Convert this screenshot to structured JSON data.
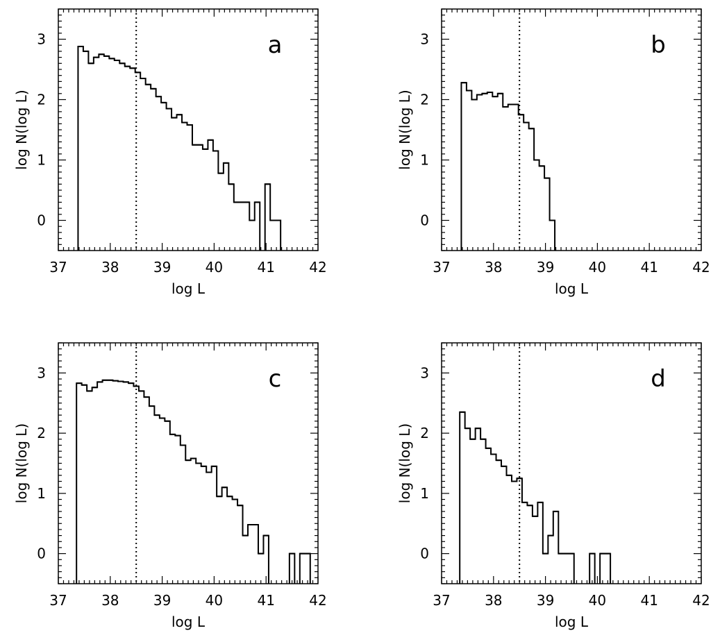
{
  "figure": {
    "panels": [
      "a",
      "b",
      "c",
      "d"
    ]
  },
  "chart_data": [
    {
      "panel_label": "a",
      "type": "step",
      "xlabel": "log L",
      "ylabel": "log N(log L)",
      "xlim": [
        37,
        42
      ],
      "ylim": [
        -0.5,
        3.5
      ],
      "xticks": [
        "37",
        "38",
        "39",
        "40",
        "41",
        "42"
      ],
      "yticks": [
        "0",
        "1",
        "2",
        "3"
      ],
      "threshold_x": 38.5,
      "bin_width": 0.1,
      "bins": [
        {
          "x": 37.38,
          "y": 2.88
        },
        {
          "x": 37.48,
          "y": 2.8
        },
        {
          "x": 37.58,
          "y": 2.6
        },
        {
          "x": 37.68,
          "y": 2.7
        },
        {
          "x": 37.78,
          "y": 2.75
        },
        {
          "x": 37.88,
          "y": 2.72
        },
        {
          "x": 37.98,
          "y": 2.68
        },
        {
          "x": 38.08,
          "y": 2.65
        },
        {
          "x": 38.18,
          "y": 2.6
        },
        {
          "x": 38.28,
          "y": 2.55
        },
        {
          "x": 38.38,
          "y": 2.52
        },
        {
          "x": 38.48,
          "y": 2.45
        },
        {
          "x": 38.58,
          "y": 2.35
        },
        {
          "x": 38.68,
          "y": 2.25
        },
        {
          "x": 38.78,
          "y": 2.18
        },
        {
          "x": 38.88,
          "y": 2.05
        },
        {
          "x": 38.98,
          "y": 1.95
        },
        {
          "x": 39.08,
          "y": 1.85
        },
        {
          "x": 39.18,
          "y": 1.7
        },
        {
          "x": 39.28,
          "y": 1.75
        },
        {
          "x": 39.38,
          "y": 1.62
        },
        {
          "x": 39.48,
          "y": 1.58
        },
        {
          "x": 39.58,
          "y": 1.25
        },
        {
          "x": 39.68,
          "y": 1.25
        },
        {
          "x": 39.78,
          "y": 1.18
        },
        {
          "x": 39.88,
          "y": 1.33
        },
        {
          "x": 39.98,
          "y": 1.15
        },
        {
          "x": 40.08,
          "y": 0.78
        },
        {
          "x": 40.18,
          "y": 0.95
        },
        {
          "x": 40.28,
          "y": 0.6
        },
        {
          "x": 40.38,
          "y": 0.3
        },
        {
          "x": 40.48,
          "y": 0.3
        },
        {
          "x": 40.58,
          "y": 0.3
        },
        {
          "x": 40.68,
          "y": 0.0
        },
        {
          "x": 40.78,
          "y": 0.3
        },
        {
          "x": 40.98,
          "y": 0.6
        },
        {
          "x": 41.08,
          "y": 0.0
        },
        {
          "x": 41.18,
          "y": 0.0
        }
      ]
    },
    {
      "panel_label": "b",
      "type": "step",
      "xlabel": "log L",
      "ylabel": "log N(log L)",
      "xlim": [
        37,
        42
      ],
      "ylim": [
        -0.5,
        3.5
      ],
      "xticks": [
        "37",
        "38",
        "39",
        "40",
        "41",
        "42"
      ],
      "yticks": [
        "0",
        "1",
        "2",
        "3"
      ],
      "threshold_x": 38.5,
      "bin_width": 0.1,
      "bins": [
        {
          "x": 37.38,
          "y": 2.28
        },
        {
          "x": 37.48,
          "y": 2.15
        },
        {
          "x": 37.58,
          "y": 2.0
        },
        {
          "x": 37.68,
          "y": 2.08
        },
        {
          "x": 37.78,
          "y": 2.1
        },
        {
          "x": 37.88,
          "y": 2.12
        },
        {
          "x": 37.98,
          "y": 2.05
        },
        {
          "x": 38.08,
          "y": 2.1
        },
        {
          "x": 38.18,
          "y": 1.88
        },
        {
          "x": 38.28,
          "y": 1.92
        },
        {
          "x": 38.38,
          "y": 1.92
        },
        {
          "x": 38.48,
          "y": 1.75
        },
        {
          "x": 38.58,
          "y": 1.62
        },
        {
          "x": 38.68,
          "y": 1.52
        },
        {
          "x": 38.78,
          "y": 1.0
        },
        {
          "x": 38.88,
          "y": 0.9
        },
        {
          "x": 38.98,
          "y": 0.7
        },
        {
          "x": 39.08,
          "y": 0.0
        }
      ]
    },
    {
      "panel_label": "c",
      "type": "step",
      "xlabel": "log L",
      "ylabel": "log N(log L)",
      "xlim": [
        37,
        42
      ],
      "ylim": [
        -0.5,
        3.5
      ],
      "xticks": [
        "37",
        "38",
        "39",
        "40",
        "41",
        "42"
      ],
      "yticks": [
        "0",
        "1",
        "2",
        "3"
      ],
      "threshold_x": 38.5,
      "bin_width": 0.1,
      "bins": [
        {
          "x": 37.35,
          "y": 2.83
        },
        {
          "x": 37.45,
          "y": 2.8
        },
        {
          "x": 37.55,
          "y": 2.7
        },
        {
          "x": 37.65,
          "y": 2.76
        },
        {
          "x": 37.75,
          "y": 2.85
        },
        {
          "x": 37.85,
          "y": 2.88
        },
        {
          "x": 37.95,
          "y": 2.88
        },
        {
          "x": 38.05,
          "y": 2.87
        },
        {
          "x": 38.15,
          "y": 2.86
        },
        {
          "x": 38.25,
          "y": 2.85
        },
        {
          "x": 38.35,
          "y": 2.83
        },
        {
          "x": 38.45,
          "y": 2.78
        },
        {
          "x": 38.55,
          "y": 2.7
        },
        {
          "x": 38.65,
          "y": 2.6
        },
        {
          "x": 38.75,
          "y": 2.45
        },
        {
          "x": 38.85,
          "y": 2.3
        },
        {
          "x": 38.95,
          "y": 2.25
        },
        {
          "x": 39.05,
          "y": 2.2
        },
        {
          "x": 39.15,
          "y": 1.98
        },
        {
          "x": 39.25,
          "y": 1.96
        },
        {
          "x": 39.35,
          "y": 1.8
        },
        {
          "x": 39.45,
          "y": 1.55
        },
        {
          "x": 39.55,
          "y": 1.58
        },
        {
          "x": 39.65,
          "y": 1.5
        },
        {
          "x": 39.75,
          "y": 1.45
        },
        {
          "x": 39.85,
          "y": 1.35
        },
        {
          "x": 39.95,
          "y": 1.45
        },
        {
          "x": 40.05,
          "y": 0.95
        },
        {
          "x": 40.15,
          "y": 1.1
        },
        {
          "x": 40.25,
          "y": 0.95
        },
        {
          "x": 40.35,
          "y": 0.9
        },
        {
          "x": 40.45,
          "y": 0.8
        },
        {
          "x": 40.55,
          "y": 0.3
        },
        {
          "x": 40.65,
          "y": 0.48
        },
        {
          "x": 40.75,
          "y": 0.48
        },
        {
          "x": 40.85,
          "y": 0.0
        },
        {
          "x": 40.95,
          "y": 0.3
        },
        {
          "x": 41.45,
          "y": 0.0
        },
        {
          "x": 41.65,
          "y": 0.0
        },
        {
          "x": 41.75,
          "y": 0.0
        }
      ]
    },
    {
      "panel_label": "d",
      "type": "step",
      "xlabel": "log L",
      "ylabel": "log N(log L)",
      "xlim": [
        37,
        42
      ],
      "ylim": [
        -0.5,
        3.5
      ],
      "xticks": [
        "37",
        "38",
        "39",
        "40",
        "41",
        "42"
      ],
      "yticks": [
        "0",
        "1",
        "2",
        "3"
      ],
      "threshold_x": 38.5,
      "bin_width": 0.1,
      "bins": [
        {
          "x": 37.35,
          "y": 2.35
        },
        {
          "x": 37.45,
          "y": 2.08
        },
        {
          "x": 37.55,
          "y": 1.9
        },
        {
          "x": 37.65,
          "y": 2.08
        },
        {
          "x": 37.75,
          "y": 1.9
        },
        {
          "x": 37.85,
          "y": 1.75
        },
        {
          "x": 37.95,
          "y": 1.65
        },
        {
          "x": 38.05,
          "y": 1.55
        },
        {
          "x": 38.15,
          "y": 1.45
        },
        {
          "x": 38.25,
          "y": 1.3
        },
        {
          "x": 38.35,
          "y": 1.2
        },
        {
          "x": 38.45,
          "y": 1.25
        },
        {
          "x": 38.55,
          "y": 0.85
        },
        {
          "x": 38.65,
          "y": 0.8
        },
        {
          "x": 38.75,
          "y": 0.62
        },
        {
          "x": 38.85,
          "y": 0.85
        },
        {
          "x": 38.95,
          "y": 0.0
        },
        {
          "x": 39.05,
          "y": 0.3
        },
        {
          "x": 39.15,
          "y": 0.7
        },
        {
          "x": 39.25,
          "y": 0.0
        },
        {
          "x": 39.35,
          "y": 0.0
        },
        {
          "x": 39.45,
          "y": 0.0
        },
        {
          "x": 39.85,
          "y": 0.0
        },
        {
          "x": 40.05,
          "y": 0.0
        },
        {
          "x": 40.15,
          "y": 0.0
        }
      ]
    }
  ]
}
